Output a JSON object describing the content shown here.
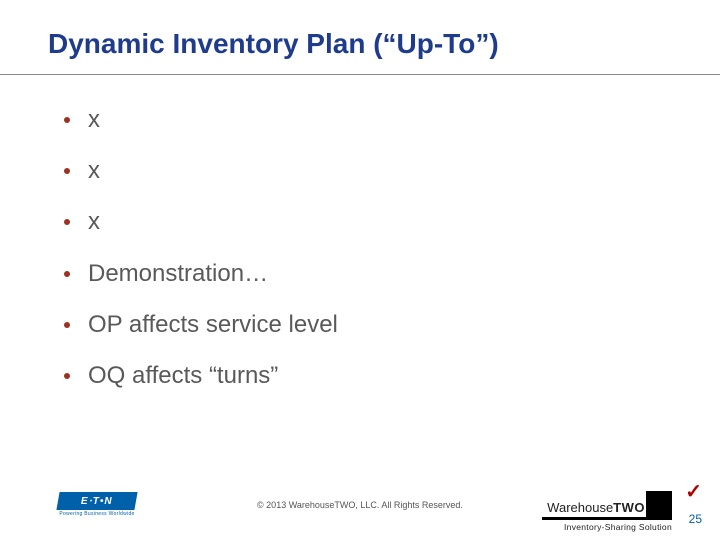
{
  "title": "Dynamic Inventory Plan (“Up-To”)",
  "title_color": "#1f3c8c",
  "title_fontsize": 28,
  "rule_color": "#888888",
  "bullets": [
    {
      "text": "x",
      "dot_color": "#a03020"
    },
    {
      "text": "x",
      "dot_color": "#a03020"
    },
    {
      "text": "x",
      "dot_color": "#a03020"
    },
    {
      "text": "Demonstration…",
      "dot_color": "#a03020"
    },
    {
      "text": "OP affects service level",
      "dot_color": "#a03020"
    },
    {
      "text": "OQ affects “turns”",
      "dot_color": "#a03020"
    }
  ],
  "bullet_text_color": "#595959",
  "bullet_fontsize": 24,
  "copyright": "© 2013 WarehouseTWO, LLC. All Rights Reserved.",
  "eaton": {
    "word": "E⋅T•N",
    "tagline": "Powering Business Worldwide",
    "blue": "#0060a9"
  },
  "wtwo": {
    "word1": "Warehouse",
    "word2": "TWO",
    "tagline": "Inventory-Sharing Solution",
    "black": "#000000"
  },
  "check_mark": "✓",
  "check_color": "#b00000",
  "page_number": "25",
  "page_number_color": "#0060a9",
  "background_color": "#ffffff"
}
